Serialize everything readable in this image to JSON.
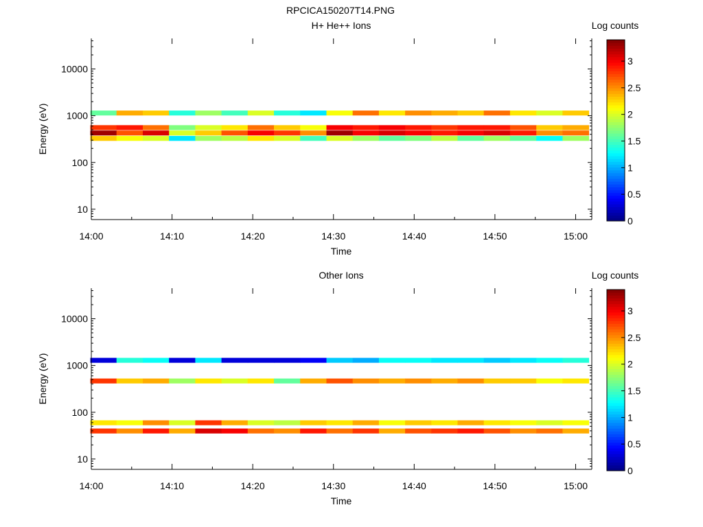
{
  "page_title": "RPCICA150207T14.PNG",
  "colorbar": {
    "label": "Log counts",
    "ticks": [
      "0",
      "0.5",
      "1",
      "1.5",
      "2",
      "2.5",
      "3"
    ],
    "range": [
      0,
      3.4
    ],
    "colormap": "jet"
  },
  "chart_data": [
    {
      "type": "heatmap",
      "title": "H+ He++ Ions",
      "xlabel": "Time",
      "ylabel": "Energy (eV)",
      "x_ticks": [
        "14:00",
        "14:10",
        "14:20",
        "14:30",
        "14:40",
        "14:50",
        "15:00"
      ],
      "xlim": [
        "14:00",
        "15:02"
      ],
      "y_scale": "log",
      "y_ticks": [
        "10",
        "100",
        "1000",
        "10000"
      ],
      "ylim": [
        6,
        45000
      ],
      "time_bins": [
        "14:01:30",
        "14:04:45",
        "14:08:00",
        "14:11:15",
        "14:14:30",
        "14:17:45",
        "14:21:00",
        "14:24:15",
        "14:27:30",
        "14:30:45",
        "14:34:00",
        "14:37:15",
        "14:40:30",
        "14:43:45",
        "14:47:00",
        "14:50:15",
        "14:53:30",
        "14:56:45",
        "15:00:00"
      ],
      "bands": [
        {
          "energy_eV": 430,
          "values": [
            3.3,
            2.7,
            3.1,
            2.0,
            2.3,
            2.7,
            3.0,
            2.8,
            2.5,
            3.3,
            3.0,
            3.1,
            3.0,
            2.9,
            3.0,
            3.1,
            2.9,
            2.5,
            2.6
          ]
        },
        {
          "energy_eV": 560,
          "values": [
            2.8,
            2.9,
            2.6,
            1.7,
            2.0,
            2.2,
            2.6,
            2.3,
            2.1,
            3.0,
            2.9,
            3.0,
            2.9,
            2.8,
            2.9,
            2.9,
            2.7,
            2.3,
            2.4
          ]
        },
        {
          "energy_eV": 330,
          "values": [
            2.3,
            2.1,
            2.0,
            1.2,
            1.8,
            1.9,
            2.2,
            2.0,
            1.5,
            2.0,
            1.8,
            1.6,
            1.7,
            1.9,
            1.6,
            1.8,
            1.6,
            1.3,
            1.8
          ]
        },
        {
          "energy_eV": 1150,
          "values": [
            1.6,
            2.4,
            2.3,
            1.4,
            1.8,
            1.5,
            2.0,
            1.4,
            1.2,
            2.1,
            2.6,
            2.2,
            2.5,
            2.4,
            2.3,
            2.6,
            2.2,
            2.0,
            2.3
          ]
        }
      ]
    },
    {
      "type": "heatmap",
      "title": "Other Ions",
      "xlabel": "Time",
      "ylabel": "Energy (eV)",
      "x_ticks": [
        "14:00",
        "14:10",
        "14:20",
        "14:30",
        "14:40",
        "14:50",
        "15:00"
      ],
      "xlim": [
        "14:00",
        "15:02"
      ],
      "y_scale": "log",
      "y_ticks": [
        "10",
        "100",
        "1000",
        "10000"
      ],
      "ylim": [
        6,
        45000
      ],
      "time_bins": [
        "14:01:30",
        "14:04:45",
        "14:08:00",
        "14:11:15",
        "14:14:30",
        "14:17:45",
        "14:21:00",
        "14:24:15",
        "14:27:30",
        "14:30:45",
        "14:34:00",
        "14:37:15",
        "14:40:30",
        "14:43:45",
        "14:47:00",
        "14:50:15",
        "14:53:30",
        "14:56:45",
        "15:00:00"
      ],
      "bands": [
        {
          "energy_eV": 40,
          "values": [
            2.8,
            2.5,
            2.9,
            2.4,
            3.1,
            3.0,
            2.6,
            2.5,
            2.9,
            2.6,
            2.8,
            2.4,
            2.7,
            2.8,
            2.9,
            2.7,
            2.5,
            2.6,
            2.4
          ]
        },
        {
          "energy_eV": 60,
          "values": [
            2.2,
            2.1,
            2.5,
            2.0,
            2.8,
            2.4,
            2.0,
            1.9,
            2.3,
            2.2,
            2.4,
            2.1,
            2.3,
            2.2,
            2.4,
            2.2,
            2.1,
            2.0,
            2.1
          ]
        },
        {
          "energy_eV": 470,
          "values": [
            2.8,
            2.3,
            2.4,
            1.8,
            2.2,
            2.0,
            2.2,
            1.6,
            2.4,
            2.7,
            2.5,
            2.4,
            2.5,
            2.4,
            2.5,
            2.3,
            2.3,
            2.1,
            2.2
          ]
        },
        {
          "energy_eV": 1300,
          "values": [
            0.3,
            1.4,
            1.3,
            0.3,
            1.2,
            0.3,
            0.3,
            0.3,
            0.4,
            1.1,
            1.0,
            1.3,
            1.3,
            1.2,
            1.2,
            1.1,
            1.2,
            1.3,
            1.4
          ]
        }
      ]
    }
  ]
}
